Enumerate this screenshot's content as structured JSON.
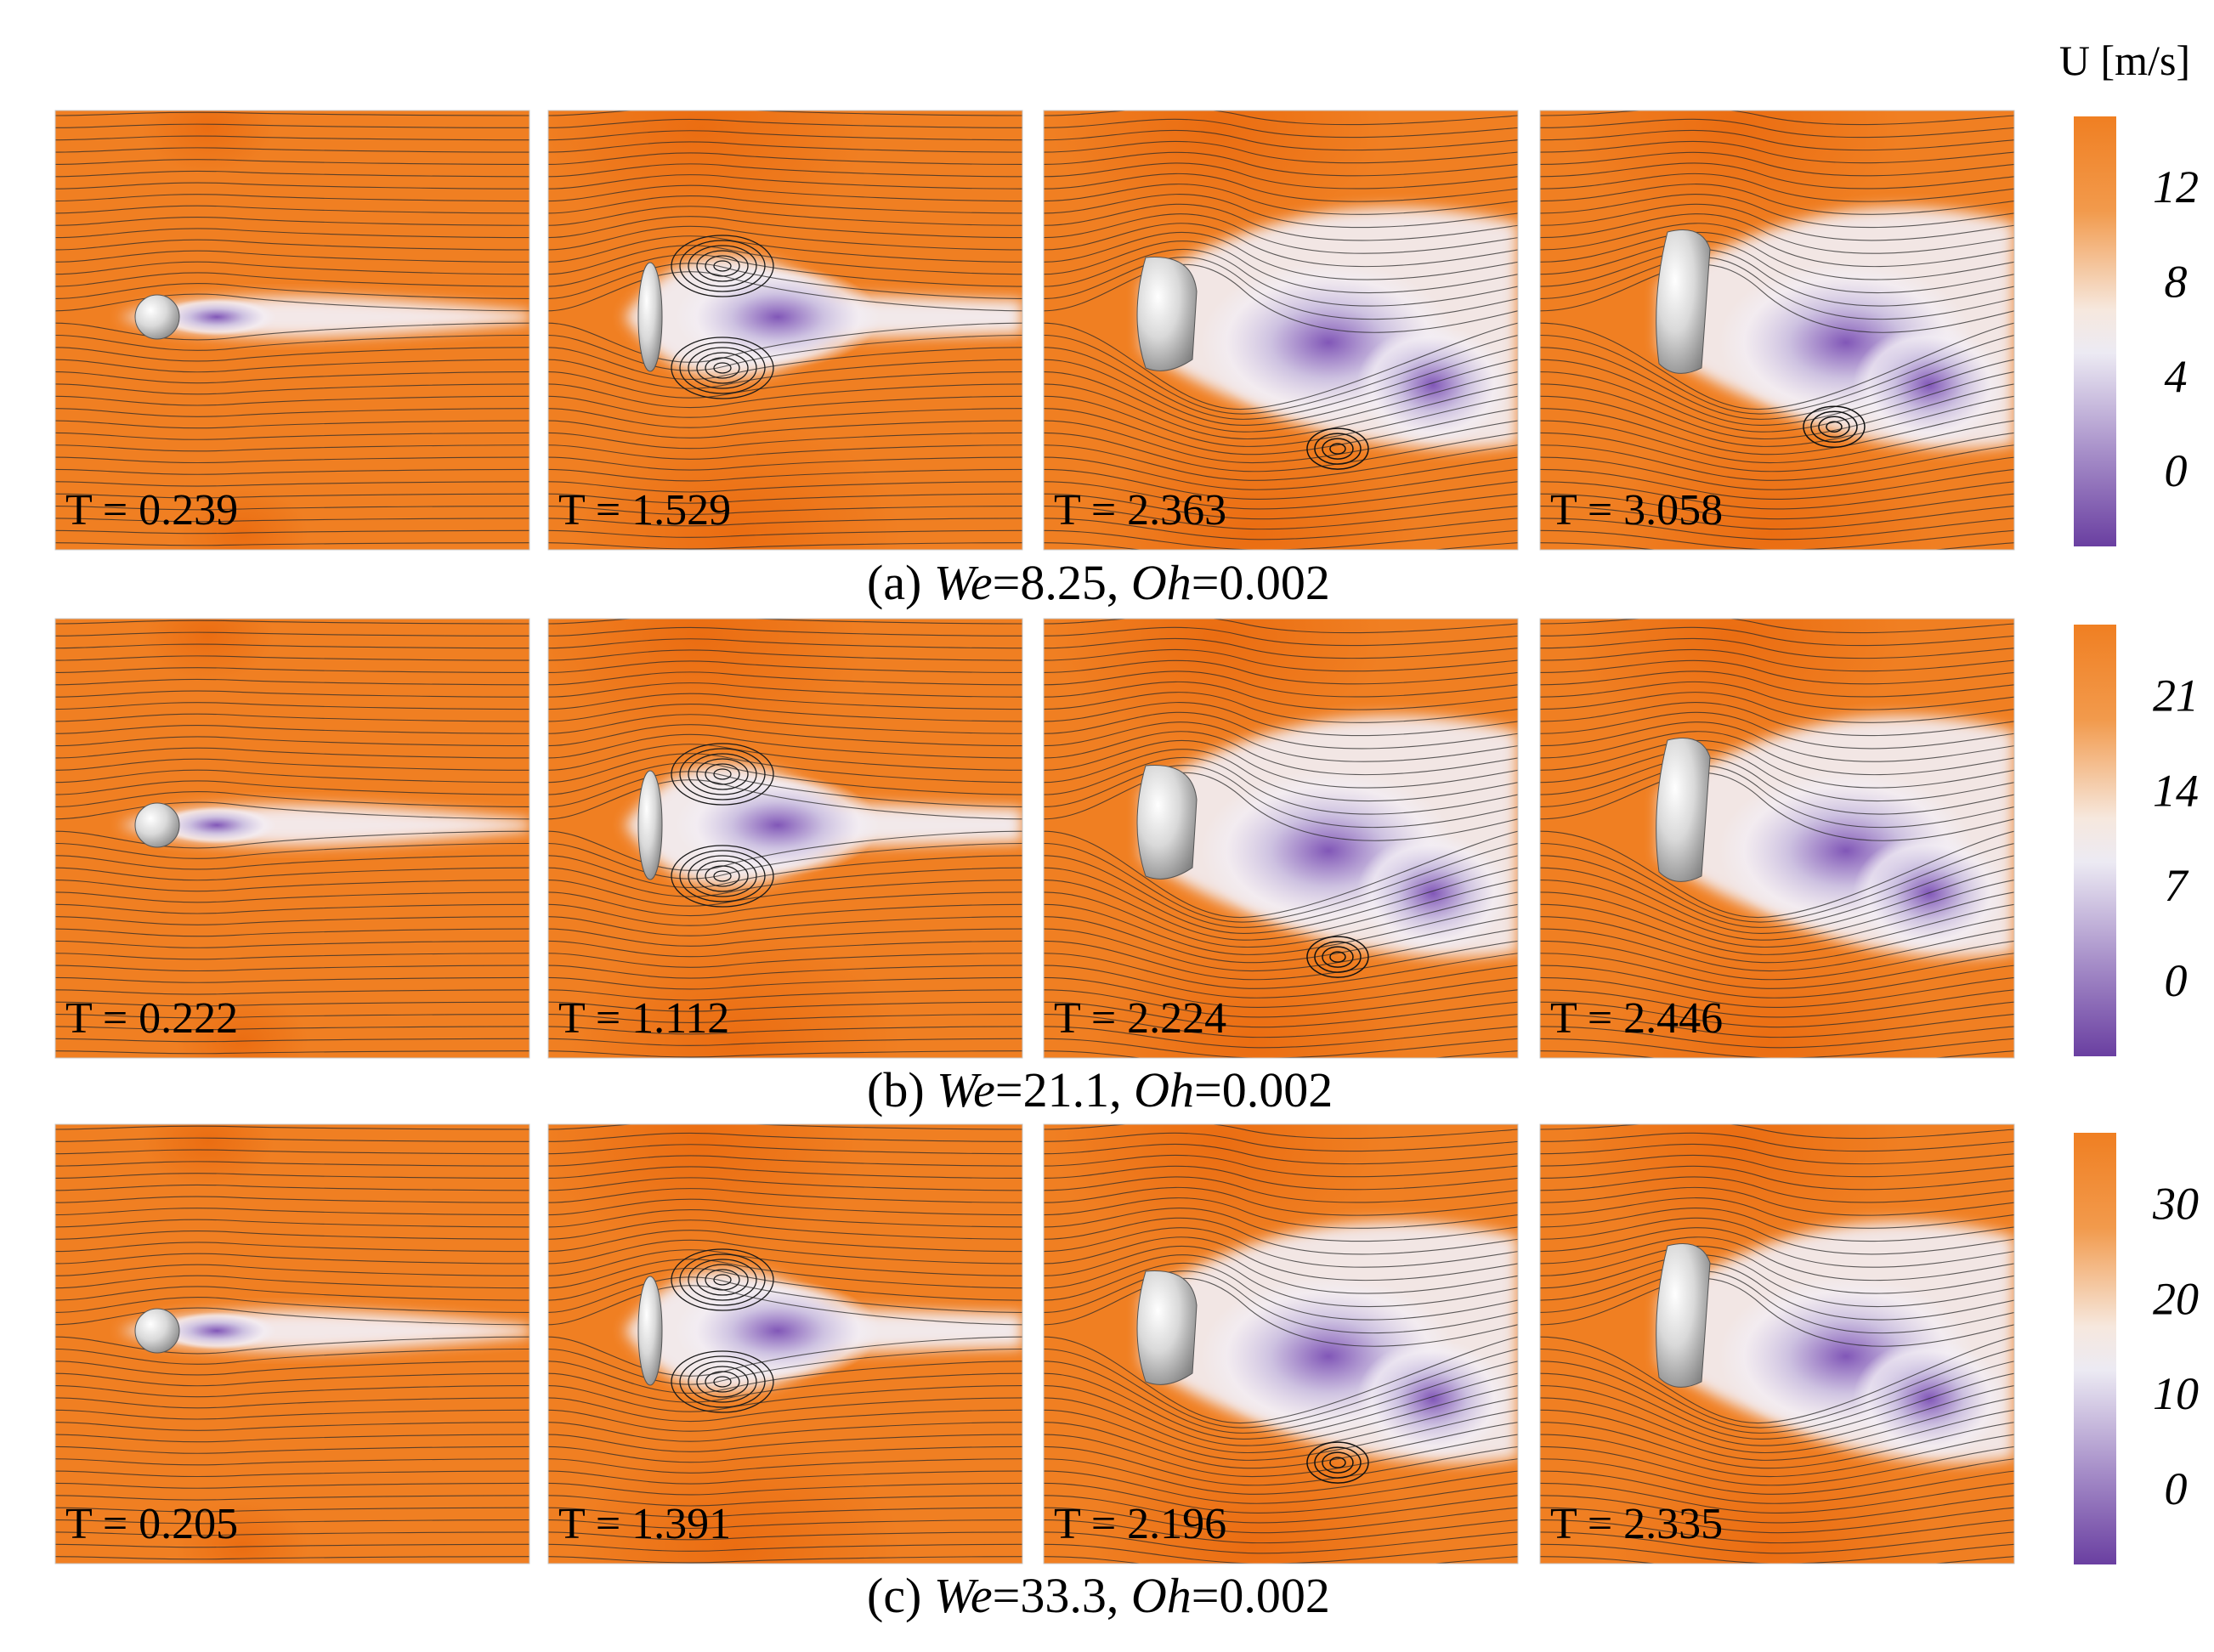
{
  "figure": {
    "colorbar_title": "U [m/s]",
    "colors": {
      "high": "#f07f22",
      "mid": "#f4f1f2",
      "low": "#6a3fa1",
      "streamline": "#2a2a2a"
    },
    "rows": [
      {
        "caption": {
          "label": "(a)",
          "we_sym": "We",
          "we_val": "=8.25,",
          "oh_sym": "Oh",
          "oh_val": "=0.002"
        },
        "colorbar_ticks": [
          "12",
          "8",
          "4",
          "0"
        ],
        "panels": [
          {
            "time": "T = 0.239",
            "stage": "sphere"
          },
          {
            "time": "T = 1.529",
            "stage": "disk"
          },
          {
            "time": "T = 2.363",
            "stage": "tilted"
          },
          {
            "time": "T = 3.058",
            "stage": "bag"
          }
        ]
      },
      {
        "caption": {
          "label": "(b)",
          "we_sym": "We",
          "we_val": "=21.1,",
          "oh_sym": "Oh",
          "oh_val": "=0.002"
        },
        "colorbar_ticks": [
          "21",
          "14",
          "7",
          "0"
        ],
        "panels": [
          {
            "time": "T = 0.222",
            "stage": "sphere"
          },
          {
            "time": "T = 1.112",
            "stage": "disk"
          },
          {
            "time": "T = 2.224",
            "stage": "tilted"
          },
          {
            "time": "T = 2.446",
            "stage": "breakup"
          }
        ]
      },
      {
        "caption": {
          "label": "(c)",
          "we_sym": "We",
          "we_val": "=33.3,",
          "oh_sym": "Oh",
          "oh_val": "=0.002"
        },
        "colorbar_ticks": [
          "30",
          "20",
          "10",
          "0"
        ],
        "panels": [
          {
            "time": "T = 0.205",
            "stage": "sphere"
          },
          {
            "time": "T = 1.391",
            "stage": "disk"
          },
          {
            "time": "T = 2.196",
            "stage": "tilted"
          },
          {
            "time": "T = 2.335",
            "stage": "breakup"
          }
        ]
      }
    ]
  }
}
